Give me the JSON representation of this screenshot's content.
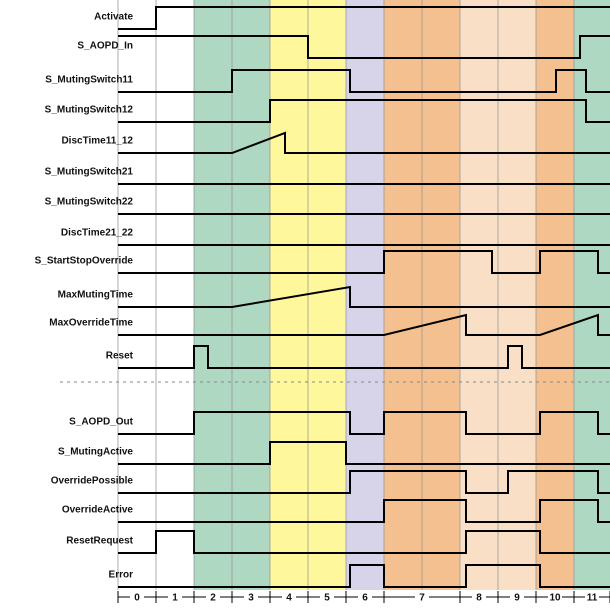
{
  "signals": {
    "inputs": [
      "Activate",
      "S_AOPD_In",
      "S_MutingSwitch11",
      "S_MutingSwitch12",
      "DiscTime11_12",
      "S_MutingSwitch21",
      "S_MutingSwitch22",
      "DiscTime21_22",
      "S_StartStopOverride",
      "MaxMutingTime",
      "MaxOverrideTime",
      "Reset"
    ],
    "outputs": [
      "S_AOPD_Out",
      "S_MutingActive",
      "OverridePossible",
      "OverrideActive",
      "ResetRequest",
      "Error"
    ]
  },
  "steps": [
    "0",
    "1",
    "2",
    "3",
    "4",
    "5",
    "6",
    "7",
    "8",
    "9",
    "10",
    "11"
  ]
}
